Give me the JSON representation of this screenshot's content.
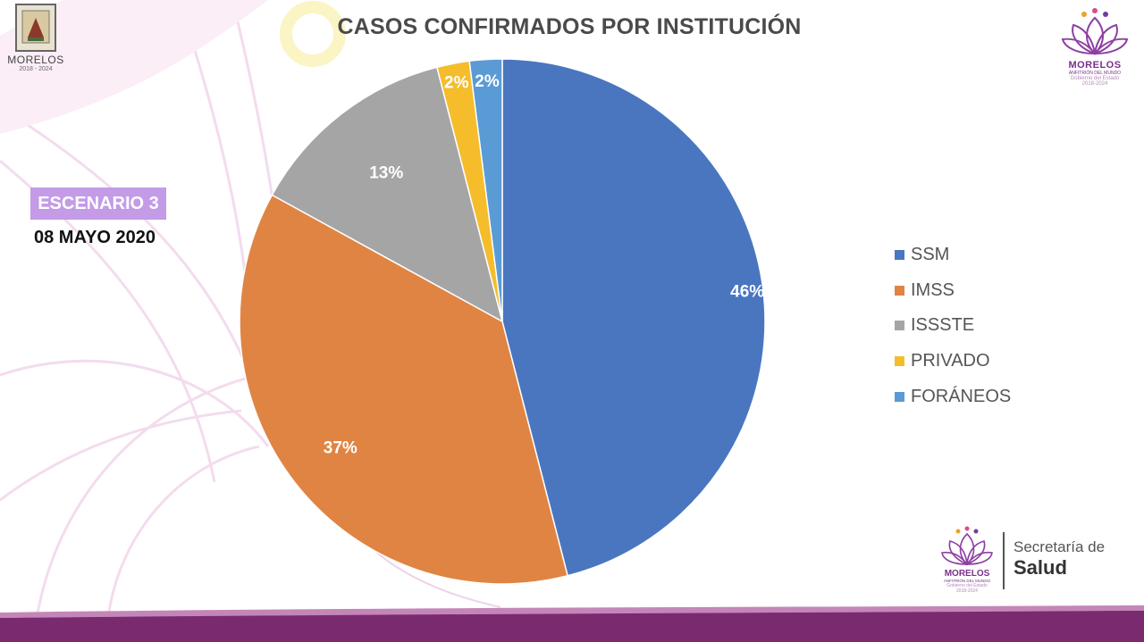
{
  "header": {
    "title": "CASOS CONFIRMADOS POR INSTITUCIÓN",
    "scenario_label": "ESCENARIO 3",
    "date": "08 MAYO 2020"
  },
  "logos": {
    "left": {
      "name": "MORELOS",
      "years": "2018 - 2024"
    },
    "right": {
      "name": "MORELOS",
      "subtitle": "ANFITRIÓN DEL MUNDO",
      "gov": "Gobierno del Estado",
      "years": "2018-2024"
    },
    "footer": {
      "name": "MORELOS",
      "subtitle": "ANFITRIÓN DEL MUNDO",
      "gov": "Gobierno del Estado",
      "years": "2018-2024",
      "dept_line1": "Secretaría de",
      "dept_line2": "Salud"
    }
  },
  "colors": {
    "scenario_badge": "#c39be6",
    "brand_purple": "#7a2f8c"
  },
  "chart_data": {
    "type": "pie",
    "title": "CASOS CONFIRMADOS POR INSTITUCIÓN",
    "legend_position": "right",
    "slices": [
      {
        "name": "SSM",
        "value": 46,
        "label": "46%",
        "color": "#4a76c0"
      },
      {
        "name": "IMSS",
        "value": 37,
        "label": "37%",
        "color": "#e08443"
      },
      {
        "name": "ISSSTE",
        "value": 13,
        "label": "13%",
        "color": "#a5a5a5"
      },
      {
        "name": "PRIVADO",
        "value": 2,
        "label": "2%",
        "color": "#f5bd2c"
      },
      {
        "name": "FORÁNEOS",
        "value": 2,
        "label": "2%",
        "color": "#5b9bd5"
      }
    ]
  }
}
